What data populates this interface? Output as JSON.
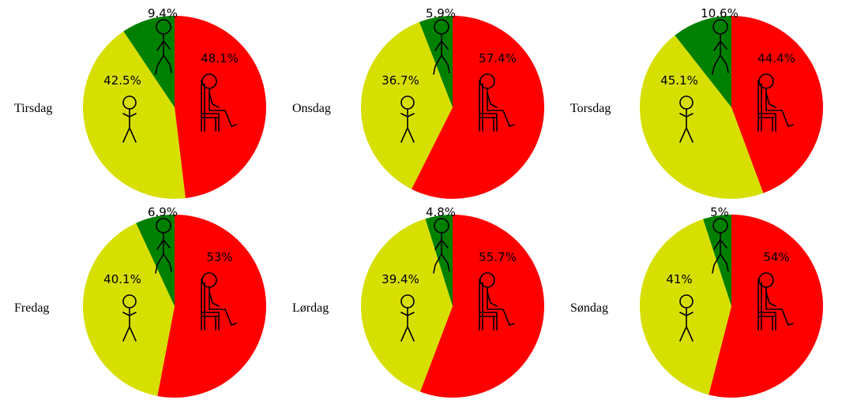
{
  "colors": {
    "sitting": "#ff0000",
    "standing": "#d7df00",
    "walking": "#008000"
  },
  "icons": {
    "sitting": "sitting-person-icon",
    "standing": "standing-person-icon",
    "walking": "walking-person-icon"
  },
  "chart_data": [
    {
      "type": "pie",
      "title": "Tirsdag",
      "series": [
        {
          "key": "sitting",
          "value": 48.1,
          "label": "48.1%"
        },
        {
          "key": "standing",
          "value": 42.5,
          "label": "42.5%"
        },
        {
          "key": "walking",
          "value": 9.4,
          "label": "9.4%"
        }
      ]
    },
    {
      "type": "pie",
      "title": "Onsdag",
      "series": [
        {
          "key": "sitting",
          "value": 57.4,
          "label": "57.4%"
        },
        {
          "key": "standing",
          "value": 36.7,
          "label": "36.7%"
        },
        {
          "key": "walking",
          "value": 5.9,
          "label": "5.9%"
        }
      ]
    },
    {
      "type": "pie",
      "title": "Torsdag",
      "series": [
        {
          "key": "sitting",
          "value": 44.4,
          "label": "44.4%"
        },
        {
          "key": "standing",
          "value": 45.1,
          "label": "45.1%"
        },
        {
          "key": "walking",
          "value": 10.6,
          "label": "10.6%"
        }
      ]
    },
    {
      "type": "pie",
      "title": "Fredag",
      "series": [
        {
          "key": "sitting",
          "value": 53,
          "label": "53%"
        },
        {
          "key": "standing",
          "value": 40.1,
          "label": "40.1%"
        },
        {
          "key": "walking",
          "value": 6.9,
          "label": "6.9%"
        }
      ]
    },
    {
      "type": "pie",
      "title": "Lørdag",
      "series": [
        {
          "key": "sitting",
          "value": 55.7,
          "label": "55.7%"
        },
        {
          "key": "standing",
          "value": 39.4,
          "label": "39.4%"
        },
        {
          "key": "walking",
          "value": 4.8,
          "label": "4.8%"
        }
      ]
    },
    {
      "type": "pie",
      "title": "Søndag",
      "series": [
        {
          "key": "sitting",
          "value": 54,
          "label": "54%"
        },
        {
          "key": "standing",
          "value": 41,
          "label": "41%"
        },
        {
          "key": "walking",
          "value": 5,
          "label": "5%"
        }
      ]
    }
  ]
}
